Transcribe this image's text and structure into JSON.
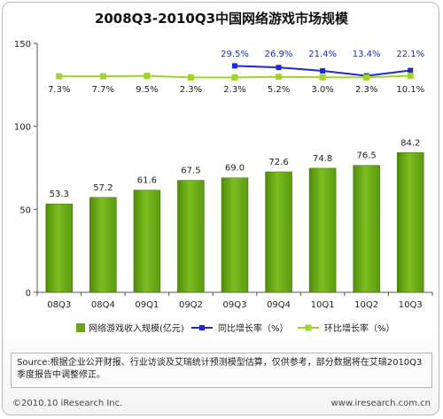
{
  "chart_data": {
    "type": "bar",
    "title": "2008Q3-2010Q3中国网络游戏市场规模",
    "categories": [
      "08Q3",
      "08Q4",
      "09Q1",
      "09Q2",
      "09Q3",
      "09Q4",
      "10Q1",
      "10Q2",
      "10Q3"
    ],
    "ylim": [
      0,
      150
    ],
    "yticks": [
      "0",
      "50",
      "100",
      "150"
    ],
    "grid": false,
    "legend_position": "bottom",
    "series": [
      {
        "name": "网络游戏收入规模(亿元)",
        "type": "bar",
        "color": "#6aa513",
        "values": [
          53.3,
          57.2,
          61.6,
          67.5,
          69.0,
          72.6,
          74.8,
          76.5,
          84.2
        ],
        "labels": [
          "53.3",
          "57.2",
          "61.6",
          "67.5",
          "69.0",
          "72.6",
          "74.8",
          "76.5",
          "84.2"
        ]
      },
      {
        "name": "同比增长率（%）",
        "type": "line",
        "color": "#1f28d6",
        "values": [
          null,
          null,
          null,
          null,
          29.5,
          26.9,
          21.4,
          13.4,
          22.1
        ],
        "labels": [
          "",
          "",
          "",
          "",
          "29.5%",
          "26.9%",
          "21.4%",
          "13.4%",
          "22.1%"
        ]
      },
      {
        "name": "环比增长率（%）",
        "type": "line",
        "color": "#9fd42c",
        "values": [
          7.3,
          7.7,
          9.5,
          2.3,
          2.3,
          5.2,
          3.0,
          2.3,
          10.1
        ],
        "labels": [
          "7.3%",
          "7.7%",
          "9.5%",
          "2.3%",
          "2.3%",
          "5.2%",
          "3.0%",
          "2.3%",
          "10.1%"
        ]
      }
    ]
  },
  "source_text": "Source:根据企业公开财报、行业访谈及艾瑞统计预测模型估算，仅供参考，部分数据将在艾瑞2010Q3季度报告中调整修正。",
  "copyright": "©2010.10 iResearch Inc.",
  "website": "www.iresearch.com.cn"
}
